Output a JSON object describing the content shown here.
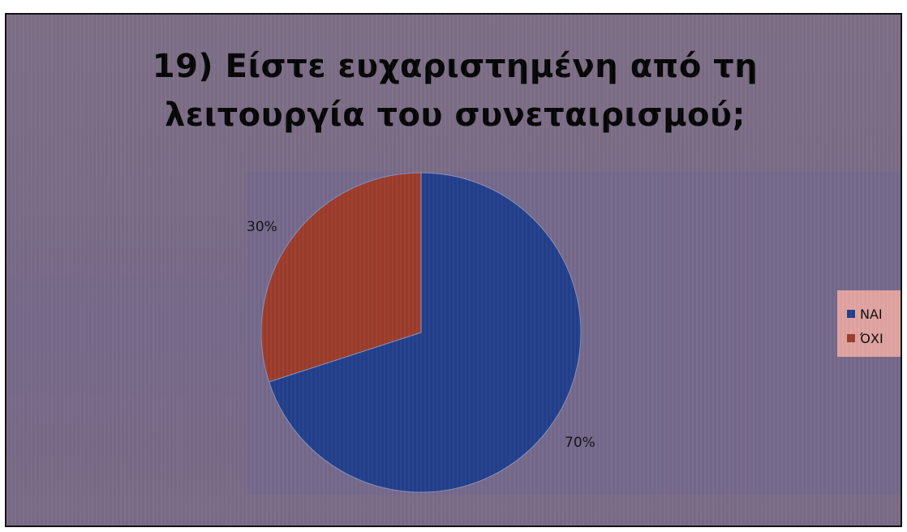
{
  "chart_data": {
    "type": "pie",
    "title_lines": [
      "19) Είστε ευχαριστημένη από τη",
      "λειτουργία του συνεταιρισμού;"
    ],
    "categories": [
      "ΝΑΙ",
      "ΌΧΙ"
    ],
    "values": [
      70,
      30
    ],
    "data_labels": [
      "70%",
      "30%"
    ],
    "colors": [
      "#233f8c",
      "#9c3c2c"
    ],
    "legend_position": "right"
  }
}
